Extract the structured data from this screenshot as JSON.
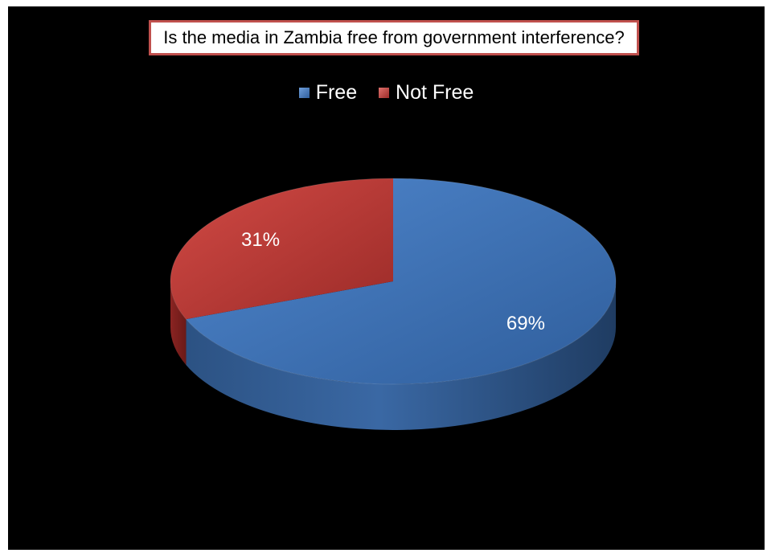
{
  "chart_data": {
    "type": "pie",
    "title": "Is the media in Zambia free from government interference?",
    "categories": [
      "Free",
      "Not Free"
    ],
    "values": [
      69,
      31
    ],
    "data_labels": [
      "69%",
      "31%"
    ],
    "colors": [
      "#4a7ebb",
      "#c0504d"
    ],
    "legend_position": "top",
    "style": "3d",
    "background": "#000000"
  },
  "legend": {
    "items": [
      {
        "label": "Free",
        "color": "#4a7ebb"
      },
      {
        "label": "Not Free",
        "color": "#c0504d"
      }
    ]
  }
}
